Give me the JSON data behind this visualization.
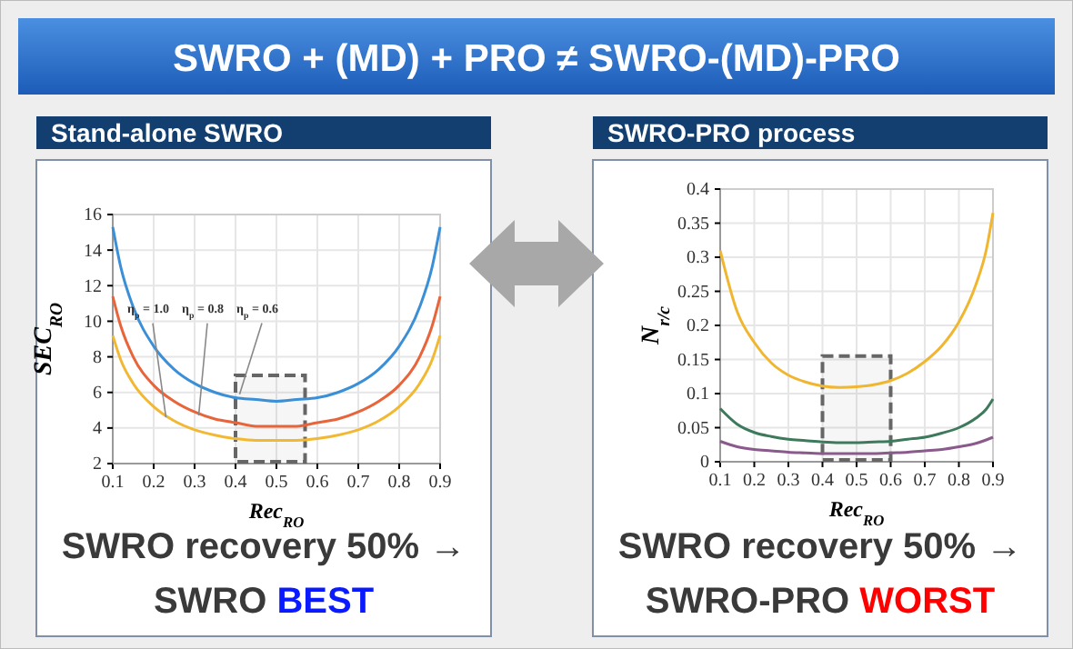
{
  "chart_data": [
    {
      "type": "other",
      "title": "SWRO + (MD) + PRO ≠ SWRO-(MD)-PRO"
    },
    {
      "type": "line",
      "title": "Stand-alone SWRO",
      "xlabel": "Rec$_{RO}$",
      "ylabel": "SEC$_{RO}$",
      "xlim": [
        0.1,
        0.9
      ],
      "xticks": [
        0.1,
        0.2,
        0.3,
        0.4,
        0.5,
        0.6,
        0.7,
        0.8,
        0.9
      ],
      "ylim": [
        2,
        16
      ],
      "yticks": [
        2,
        4,
        6,
        8,
        10,
        12,
        14,
        16
      ],
      "grid": true,
      "x": [
        0.1,
        0.12,
        0.15,
        0.2,
        0.25,
        0.3,
        0.35,
        0.4,
        0.45,
        0.5,
        0.55,
        0.6,
        0.65,
        0.7,
        0.75,
        0.8,
        0.85,
        0.88,
        0.9
      ],
      "series": [
        {
          "color": "#3a8fd6",
          "values": [
            15.3,
            13.0,
            10.8,
            8.6,
            7.3,
            6.5,
            6.0,
            5.7,
            5.6,
            5.5,
            5.6,
            5.7,
            6.0,
            6.5,
            7.3,
            8.6,
            10.8,
            13.0,
            15.3
          ]
        },
        {
          "color": "#e8643a",
          "values": [
            11.4,
            9.7,
            8.0,
            6.4,
            5.5,
            4.9,
            4.5,
            4.3,
            4.1,
            4.1,
            4.1,
            4.3,
            4.5,
            4.9,
            5.5,
            6.4,
            8.0,
            9.7,
            11.4
          ]
        },
        {
          "color": "#f2b832",
          "values": [
            9.2,
            7.8,
            6.5,
            5.2,
            4.4,
            3.9,
            3.6,
            3.4,
            3.3,
            3.3,
            3.3,
            3.4,
            3.6,
            3.9,
            4.4,
            5.2,
            6.5,
            7.8,
            9.2
          ]
        }
      ],
      "annotations": [
        {
          "text": "η$_{p}$ = 1.0",
          "x": 0.23,
          "y": 4.6
        },
        {
          "text": "η$_{p}$ = 0.8",
          "x": 0.31,
          "y": 4.7
        },
        {
          "text": "η$_{p}$ = 0.6",
          "x": 0.41,
          "y": 5.9
        },
        "SWRO recovery 50% →",
        "SWRO BEST"
      ],
      "bands": [
        {
          "axis": "x",
          "from": 0.4,
          "to": 0.57,
          "color": "#666666"
        }
      ]
    },
    {
      "type": "line",
      "title": "SWRO-PRO process",
      "xlabel": "Rec$_{RO}$",
      "ylabel": "N$_{r/c}$",
      "xlim": [
        0.1,
        0.9
      ],
      "xticks": [
        0.1,
        0.2,
        0.3,
        0.4,
        0.5,
        0.6,
        0.7,
        0.8,
        0.9
      ],
      "ylim": [
        0,
        0.4
      ],
      "yticks": [
        0,
        0.05,
        0.1,
        0.15,
        0.2,
        0.25,
        0.3,
        0.35,
        0.4
      ],
      "grid": true,
      "x": [
        0.1,
        0.15,
        0.2,
        0.25,
        0.3,
        0.35,
        0.4,
        0.45,
        0.5,
        0.55,
        0.6,
        0.65,
        0.7,
        0.75,
        0.8,
        0.85,
        0.88,
        0.9
      ],
      "series": [
        {
          "color": "#f0b630",
          "values": [
            0.31,
            0.22,
            0.175,
            0.145,
            0.127,
            0.117,
            0.111,
            0.109,
            0.11,
            0.113,
            0.119,
            0.13,
            0.147,
            0.17,
            0.205,
            0.26,
            0.31,
            0.365
          ]
        },
        {
          "color": "#3d7a5c",
          "values": [
            0.078,
            0.055,
            0.043,
            0.037,
            0.033,
            0.031,
            0.029,
            0.028,
            0.028,
            0.029,
            0.03,
            0.033,
            0.036,
            0.042,
            0.05,
            0.064,
            0.077,
            0.092
          ]
        },
        {
          "color": "#8a5a8c",
          "values": [
            0.03,
            0.022,
            0.018,
            0.016,
            0.014,
            0.013,
            0.012,
            0.012,
            0.012,
            0.012,
            0.013,
            0.014,
            0.016,
            0.018,
            0.022,
            0.027,
            0.032,
            0.036
          ]
        }
      ],
      "annotations": [
        "SWRO recovery 50% →",
        "SWRO-PRO WORST"
      ],
      "bands": [
        {
          "axis": "x",
          "from": 0.4,
          "to": 0.6,
          "color": "#666666"
        }
      ]
    }
  ]
}
